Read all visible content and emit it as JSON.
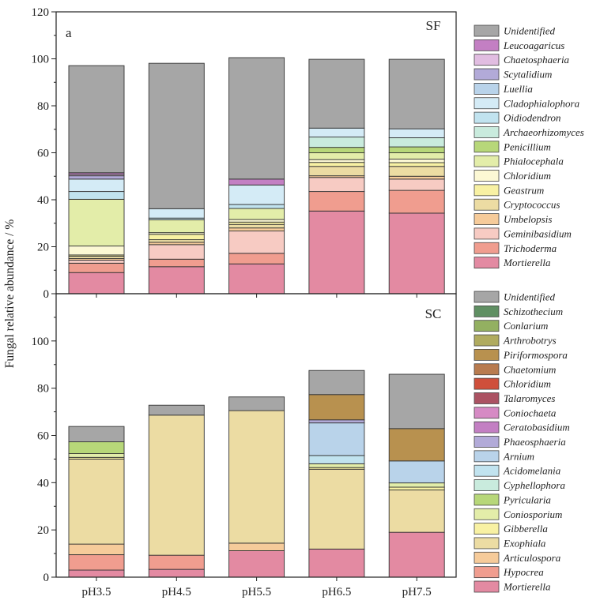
{
  "chart_data": [
    {
      "type": "bar",
      "panel_tag": "a",
      "panel_label": "SF",
      "ylabel": "Fungal relative abundance / %",
      "ylim": [
        0,
        120
      ],
      "yticks": [
        0,
        20,
        40,
        60,
        80,
        100,
        120
      ],
      "categories": [
        "pH3.5",
        "pH4.5",
        "pH5.5",
        "pH6.5",
        "pH7.5"
      ],
      "series": [
        {
          "name": "Mortierella",
          "color": "#e38aa2",
          "values": [
            9,
            11.5,
            12.7,
            35.2,
            34.3
          ]
        },
        {
          "name": "Trichoderma",
          "color": "#f09d8f",
          "values": [
            4,
            3.2,
            4.5,
            8.3,
            9.7
          ]
        },
        {
          "name": "Geminibasidium",
          "color": "#f7cbc3",
          "values": [
            1.3,
            6.2,
            9.5,
            6,
            4.8
          ]
        },
        {
          "name": "Umbelopsis",
          "color": "#f6cb9a",
          "values": [
            0.7,
            1,
            1.3,
            0.7,
            1.2
          ]
        },
        {
          "name": "Cryptococcus",
          "color": "#ecdca3",
          "values": [
            1,
            1.1,
            1.5,
            4,
            4.2
          ]
        },
        {
          "name": "Geastrum",
          "color": "#f8f1a3",
          "values": [
            0.5,
            2.3,
            1,
            1.7,
            1.6
          ]
        },
        {
          "name": "Chloridium",
          "color": "#fcf8d4",
          "values": [
            3.8,
            0.7,
            1.1,
            1.2,
            1.5
          ]
        },
        {
          "name": "Phialocephala",
          "color": "#e3eda9",
          "values": [
            19.9,
            5.5,
            4.7,
            2.9,
            2.7
          ]
        },
        {
          "name": "Penicillium",
          "color": "#b7d779",
          "values": [
            0,
            0,
            0,
            2.3,
            2.5
          ]
        },
        {
          "name": "Archaeorhizomyces",
          "color": "#c9ebdd",
          "values": [
            0,
            0,
            0,
            4.4,
            3.9
          ]
        },
        {
          "name": "Oidiodendron",
          "color": "#c1e3ef",
          "values": [
            3.3,
            0.7,
            1.7,
            0,
            0
          ]
        },
        {
          "name": "Cladophialophora",
          "color": "#d4ebf6",
          "values": [
            5.3,
            4,
            8.3,
            3.8,
            3.8
          ]
        },
        {
          "name": "Luellia",
          "color": "#b9d3ea",
          "values": [
            0,
            0,
            0,
            0,
            0
          ]
        },
        {
          "name": "Scytalidium",
          "color": "#b2aad8",
          "values": [
            1.4,
            0,
            0,
            0,
            0
          ]
        },
        {
          "name": "Chaetosphaeria",
          "color": "#e1bde1",
          "values": [
            0.6,
            0,
            0,
            0,
            0
          ]
        },
        {
          "name": "Leucoagaricus",
          "color": "#c37fc3",
          "values": [
            0.7,
            0,
            2.5,
            0,
            0
          ]
        },
        {
          "name": "Unidentified",
          "color": "#a6a6a6",
          "values": [
            45.6,
            61.9,
            51.7,
            29.3,
            29.6
          ]
        }
      ]
    },
    {
      "type": "bar",
      "panel_label": "SC",
      "ylim": [
        0,
        120
      ],
      "yticks": [
        0,
        20,
        40,
        60,
        80,
        100
      ],
      "categories": [
        "pH3.5",
        "pH4.5",
        "pH5.5",
        "pH6.5",
        "pH7.5"
      ],
      "series": [
        {
          "name": "Mortierella",
          "color": "#e38aa2",
          "values": [
            3,
            3.3,
            11.2,
            11.9,
            19
          ]
        },
        {
          "name": "Hypocrea",
          "color": "#f09d8f",
          "values": [
            6.5,
            6,
            0,
            0,
            0
          ]
        },
        {
          "name": "Articulospora",
          "color": "#f6cb9a",
          "values": [
            4.5,
            0,
            3.2,
            0,
            0
          ]
        },
        {
          "name": "Exophiala",
          "color": "#ecdca3",
          "values": [
            36,
            59.3,
            56.1,
            33.8,
            17.9
          ]
        },
        {
          "name": "Gibberella",
          "color": "#f8f1a3",
          "values": [
            0.7,
            0,
            0,
            0.7,
            1.2
          ]
        },
        {
          "name": "Coniosporium",
          "color": "#e3eda9",
          "values": [
            1.6,
            0,
            0,
            1.6,
            1.8
          ]
        },
        {
          "name": "Pyricularia",
          "color": "#b7d779",
          "values": [
            5,
            0,
            0,
            0,
            0
          ]
        },
        {
          "name": "Cyphellophora",
          "color": "#c9ebdd",
          "values": [
            0,
            0,
            0,
            0,
            0
          ]
        },
        {
          "name": "Acidomelania",
          "color": "#c1e3ef",
          "values": [
            0,
            0,
            0,
            3.5,
            0
          ]
        },
        {
          "name": "Arnium",
          "color": "#b9d3ea",
          "values": [
            0,
            0,
            0,
            13.8,
            9.3
          ]
        },
        {
          "name": "Phaeosphaeria",
          "color": "#b2aad8",
          "values": [
            0,
            0,
            0,
            1.3,
            0
          ]
        },
        {
          "name": "Ceratobasidium",
          "color": "#c37fc3",
          "values": [
            0,
            0,
            0,
            0,
            0
          ]
        },
        {
          "name": "Coniochaeta",
          "color": "#d68ac4",
          "values": [
            0,
            0,
            0,
            0,
            0
          ]
        },
        {
          "name": "Talaromyces",
          "color": "#ab5262",
          "values": [
            0,
            0,
            0,
            0,
            0
          ]
        },
        {
          "name": "Chloridium",
          "color": "#cf4f3b",
          "values": [
            0,
            0,
            0,
            0,
            0
          ]
        },
        {
          "name": "Chaetomium",
          "color": "#b87b4f",
          "values": [
            0,
            0,
            0,
            0,
            0
          ]
        },
        {
          "name": "Piriformospora",
          "color": "#b8914f",
          "values": [
            0,
            0,
            0,
            10.7,
            13.7
          ]
        },
        {
          "name": "Arthrobotrys",
          "color": "#b0ab5f",
          "values": [
            0,
            0,
            0,
            0,
            0
          ]
        },
        {
          "name": "Conlarium",
          "color": "#93b061",
          "values": [
            0,
            0,
            0,
            0,
            0
          ]
        },
        {
          "name": "Schizothecium",
          "color": "#5f8f62",
          "values": [
            0,
            0,
            0,
            0,
            0
          ]
        },
        {
          "name": "Unidentified",
          "color": "#a6a6a6",
          "values": [
            6.5,
            4.2,
            5.8,
            10.2,
            23
          ]
        }
      ]
    }
  ]
}
